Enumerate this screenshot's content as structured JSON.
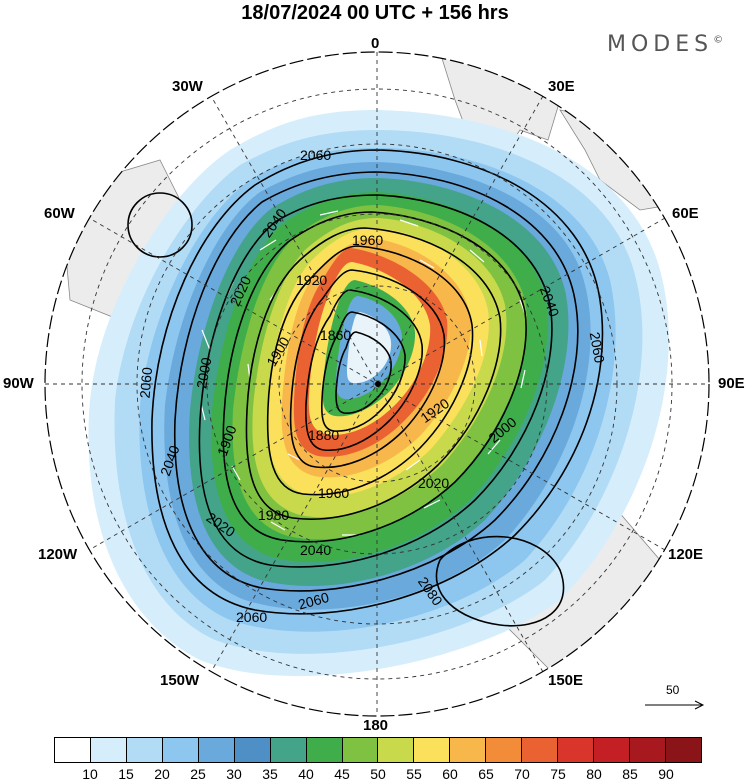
{
  "title": "18/07/2024  00 UTC  + 156 hrs",
  "brand": "MODES",
  "brand_mark": "©",
  "longitude_labels": {
    "n0": "0",
    "e30": "30E",
    "e60": "60E",
    "e90": "90E",
    "e120": "120E",
    "e150": "150E",
    "s180": "180",
    "w150": "150W",
    "w120": "120W",
    "w90": "90W",
    "w60": "60W",
    "w30": "30W"
  },
  "contour_labels": [
    "1860",
    "1880",
    "1900",
    "1920",
    "1960",
    "1980",
    "2000",
    "2020",
    "2040",
    "2060",
    "2080"
  ],
  "reference_vector": {
    "value": "50",
    "icon": "arrow-right-icon"
  },
  "colorbar": {
    "colors": [
      "#ffffff",
      "#d6eefb",
      "#b2dcf5",
      "#8dc6ee",
      "#6aa9db",
      "#4e90c6",
      "#43a48a",
      "#3fae4a",
      "#7fc241",
      "#c8da4c",
      "#fbe05c",
      "#f8b74a",
      "#f28c38",
      "#eb6232",
      "#d9352a",
      "#c41f24",
      "#a8181f",
      "#8a1418"
    ],
    "labels": [
      "10",
      "15",
      "20",
      "25",
      "30",
      "35",
      "40",
      "45",
      "50",
      "55",
      "60",
      "65",
      "70",
      "75",
      "80",
      "85",
      "90"
    ]
  }
}
